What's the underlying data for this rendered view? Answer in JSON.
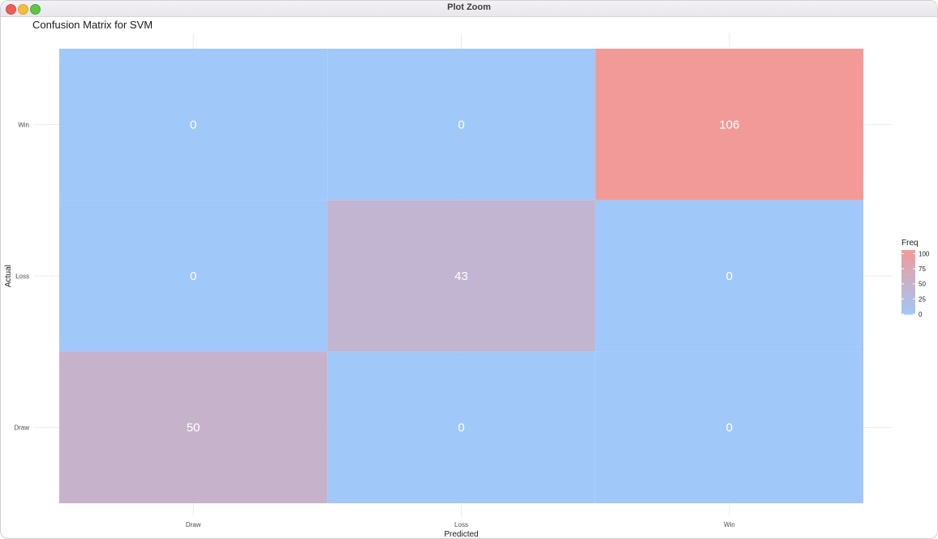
{
  "window": {
    "title": "Plot Zoom"
  },
  "chart_data": {
    "type": "heatmap",
    "title": "Confusion Matrix for SVM",
    "xlabel": "Predicted",
    "ylabel": "Actual",
    "x_categories": [
      "Draw",
      "Loss",
      "Win"
    ],
    "y_categories": [
      "Draw",
      "Loss",
      "Win"
    ],
    "cells": [
      {
        "actual": "Win",
        "predicted": "Draw",
        "value": 0
      },
      {
        "actual": "Win",
        "predicted": "Loss",
        "value": 0
      },
      {
        "actual": "Win",
        "predicted": "Win",
        "value": 106
      },
      {
        "actual": "Loss",
        "predicted": "Draw",
        "value": 0
      },
      {
        "actual": "Loss",
        "predicted": "Loss",
        "value": 43
      },
      {
        "actual": "Loss",
        "predicted": "Win",
        "value": 0
      },
      {
        "actual": "Draw",
        "predicted": "Draw",
        "value": 50
      },
      {
        "actual": "Draw",
        "predicted": "Loss",
        "value": 0
      },
      {
        "actual": "Draw",
        "predicted": "Win",
        "value": 0
      }
    ],
    "color_scale": {
      "low": "#a0c8f8",
      "high": "#f29a98",
      "min": 0,
      "max": 106
    },
    "legend": {
      "title": "Freq",
      "ticks": [
        0,
        25,
        50,
        75,
        100
      ],
      "placement": "right"
    },
    "grid": true
  }
}
